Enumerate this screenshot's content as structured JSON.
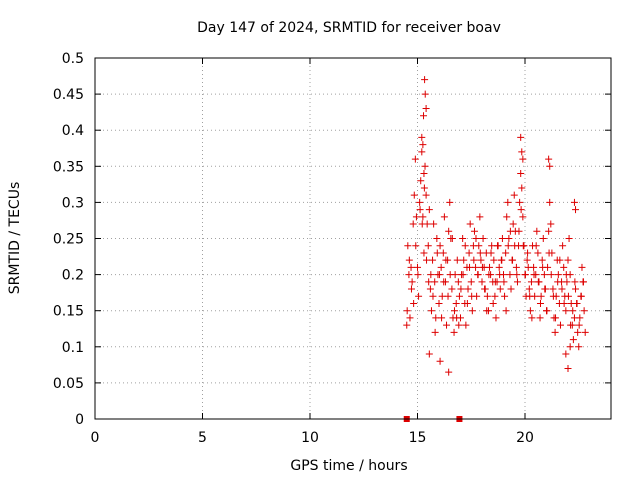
{
  "chart_data": {
    "type": "scatter",
    "title": "Day 147 of 2024, SRMTID for receiver boav",
    "xlabel": "GPS time / hours",
    "ylabel": "SRMTID / TECUs",
    "xlim": [
      0,
      24
    ],
    "ylim": [
      0,
      0.5
    ],
    "x_ticks": [
      0,
      5,
      10,
      15,
      20
    ],
    "x_tick_labels": [
      "0",
      "5",
      "10",
      "15",
      "20"
    ],
    "y_ticks": [
      0,
      0.05,
      0.1,
      0.15,
      0.2,
      0.25,
      0.3,
      0.35,
      0.4,
      0.45,
      0.5
    ],
    "y_tick_labels": [
      "0",
      "0.05",
      "0.1",
      "0.15",
      "0.2",
      "0.25",
      "0.3",
      "0.35",
      "0.4",
      "0.45",
      "0.5"
    ],
    "grid": true,
    "marker": "+",
    "marker_color": "#dd0000",
    "data_gap_markers_at_x": [
      14.5,
      16.95
    ],
    "series": [
      {
        "name": "SRMTID",
        "x": [
          14.5,
          14.55,
          14.6,
          14.65,
          14.7,
          14.75,
          14.8,
          14.85,
          14.9,
          14.95,
          15.0,
          15.05,
          15.1,
          15.15,
          15.2,
          15.25,
          15.3,
          15.35,
          15.4,
          15.45,
          15.5,
          15.55,
          15.6,
          15.65,
          15.7,
          15.75,
          15.8,
          15.85,
          15.9,
          15.95,
          16.0,
          16.05,
          16.1,
          16.15,
          16.2,
          16.25,
          16.3,
          16.35,
          16.4,
          16.45,
          16.5,
          16.55,
          16.6,
          16.65,
          16.7,
          16.75,
          16.8,
          16.85,
          16.9,
          16.95,
          17.0,
          17.05,
          17.1,
          17.15,
          17.2,
          17.25,
          17.3,
          17.35,
          17.4,
          17.45,
          17.5,
          17.55,
          17.6,
          17.65,
          17.7,
          17.75,
          17.8,
          17.85,
          17.9,
          17.95,
          18.0,
          18.05,
          18.1,
          18.15,
          18.2,
          18.25,
          18.3,
          18.35,
          18.4,
          18.45,
          18.5,
          18.55,
          18.6,
          18.65,
          18.7,
          18.75,
          18.8,
          18.85,
          18.9,
          18.95,
          19.0,
          19.05,
          19.1,
          19.15,
          19.2,
          19.25,
          19.3,
          19.35,
          19.4,
          19.45,
          19.5,
          19.55,
          19.6,
          19.65,
          19.7,
          19.75,
          19.8,
          19.85,
          19.9,
          19.95,
          20.0,
          20.05,
          20.1,
          20.15,
          20.2,
          20.25,
          20.3,
          20.35,
          20.4,
          20.45,
          20.5,
          20.55,
          20.6,
          20.65,
          20.7,
          20.75,
          20.8,
          20.85,
          20.9,
          20.95,
          21.0,
          21.05,
          21.1,
          21.15,
          21.2,
          21.25,
          21.3,
          21.35,
          21.4,
          21.45,
          21.5,
          21.55,
          21.6,
          21.65,
          21.7,
          21.75,
          21.8,
          21.85,
          21.9,
          21.95,
          22.0,
          22.05,
          22.1,
          22.15,
          22.2,
          22.25,
          22.3,
          22.35,
          22.4,
          22.45,
          22.5,
          22.55,
          22.6,
          22.65,
          22.7,
          22.75,
          22.8,
          14.52,
          14.62,
          14.72,
          14.82,
          14.92,
          15.02,
          15.12,
          15.22,
          15.32,
          15.42,
          15.52,
          15.62,
          15.72,
          15.82,
          15.92,
          16.02,
          16.12,
          16.22,
          16.32,
          16.42,
          16.52,
          16.62,
          16.72,
          16.82,
          16.92,
          17.02,
          17.12,
          17.22,
          17.32,
          17.42,
          17.52,
          17.62,
          17.72,
          17.82,
          17.92,
          18.02,
          18.12,
          18.22,
          18.32,
          18.42,
          18.52,
          18.62,
          18.72,
          18.82,
          18.92,
          19.02,
          19.12,
          19.22,
          19.32,
          19.42,
          19.52,
          19.62,
          19.72,
          19.82,
          19.92,
          20.02,
          20.12,
          20.22,
          20.32,
          20.42,
          20.52,
          20.62,
          20.72,
          20.82,
          20.92,
          21.02,
          21.12,
          21.22,
          21.32,
          21.42,
          21.52,
          21.62,
          21.72,
          21.82,
          21.92,
          22.02,
          22.12,
          22.22,
          22.32,
          22.42,
          22.52,
          22.62,
          22.72,
          15.28,
          15.33,
          15.36,
          15.4,
          15.2,
          15.25,
          15.3,
          19.8,
          19.85,
          19.9,
          21.1,
          21.15,
          22.3,
          22.35,
          15.55,
          16.05,
          16.45,
          21.9,
          22.0,
          22.1
        ],
        "y": [
          0.13,
          0.24,
          0.2,
          0.14,
          0.21,
          0.19,
          0.27,
          0.31,
          0.36,
          0.28,
          0.21,
          0.17,
          0.3,
          0.33,
          0.39,
          0.28,
          0.23,
          0.35,
          0.31,
          0.27,
          0.24,
          0.29,
          0.18,
          0.15,
          0.22,
          0.27,
          0.19,
          0.14,
          0.25,
          0.2,
          0.16,
          0.24,
          0.21,
          0.17,
          0.23,
          0.28,
          0.19,
          0.13,
          0.22,
          0.26,
          0.3,
          0.25,
          0.18,
          0.14,
          0.12,
          0.2,
          0.16,
          0.22,
          0.19,
          0.17,
          0.14,
          0.2,
          0.25,
          0.22,
          0.16,
          0.13,
          0.21,
          0.18,
          0.23,
          0.27,
          0.19,
          0.15,
          0.24,
          0.26,
          0.21,
          0.17,
          0.2,
          0.24,
          0.28,
          0.22,
          0.19,
          0.25,
          0.21,
          0.18,
          0.23,
          0.17,
          0.15,
          0.21,
          0.2,
          0.24,
          0.19,
          0.22,
          0.17,
          0.14,
          0.19,
          0.24,
          0.21,
          0.18,
          0.22,
          0.25,
          0.2,
          0.17,
          0.23,
          0.28,
          0.3,
          0.25,
          0.2,
          0.18,
          0.22,
          0.27,
          0.31,
          0.26,
          0.21,
          0.19,
          0.24,
          0.3,
          0.34,
          0.32,
          0.28,
          0.24,
          0.2,
          0.17,
          0.22,
          0.21,
          0.18,
          0.15,
          0.19,
          0.24,
          0.21,
          0.17,
          0.2,
          0.26,
          0.23,
          0.19,
          0.14,
          0.17,
          0.22,
          0.25,
          0.2,
          0.18,
          0.15,
          0.21,
          0.26,
          0.3,
          0.27,
          0.23,
          0.18,
          0.14,
          0.12,
          0.17,
          0.22,
          0.2,
          0.16,
          0.13,
          0.19,
          0.24,
          0.21,
          0.17,
          0.15,
          0.19,
          0.22,
          0.25,
          0.2,
          0.16,
          0.13,
          0.11,
          0.14,
          0.18,
          0.16,
          0.12,
          0.1,
          0.14,
          0.17,
          0.21,
          0.19,
          0.15,
          0.12,
          0.15,
          0.22,
          0.18,
          0.16,
          0.24,
          0.2,
          0.29,
          0.27,
          0.32,
          0.22,
          0.19,
          0.2,
          0.17,
          0.12,
          0.23,
          0.2,
          0.14,
          0.19,
          0.22,
          0.17,
          0.2,
          0.25,
          0.15,
          0.14,
          0.13,
          0.18,
          0.2,
          0.24,
          0.16,
          0.21,
          0.17,
          0.22,
          0.25,
          0.2,
          0.23,
          0.21,
          0.18,
          0.15,
          0.2,
          0.23,
          0.16,
          0.19,
          0.24,
          0.2,
          0.22,
          0.19,
          0.15,
          0.24,
          0.26,
          0.22,
          0.24,
          0.2,
          0.26,
          0.29,
          0.24,
          0.2,
          0.23,
          0.17,
          0.14,
          0.2,
          0.24,
          0.19,
          0.16,
          0.21,
          0.18,
          0.15,
          0.23,
          0.2,
          0.17,
          0.14,
          0.19,
          0.22,
          0.18,
          0.16,
          0.2,
          0.17,
          0.13,
          0.15,
          0.19,
          0.16,
          0.13,
          0.17,
          0.19,
          0.42,
          0.47,
          0.45,
          0.43,
          0.37,
          0.38,
          0.34,
          0.39,
          0.37,
          0.36,
          0.36,
          0.35,
          0.3,
          0.29,
          0.09,
          0.08,
          0.065,
          0.09,
          0.07,
          0.1
        ]
      }
    ]
  }
}
